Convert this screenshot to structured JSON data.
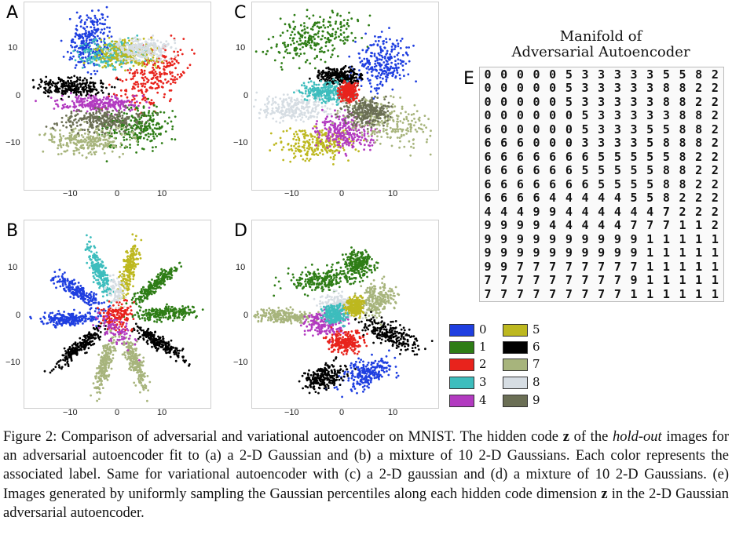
{
  "panels": [
    {
      "letter": "A",
      "yticks": [
        "10",
        "0",
        "−10"
      ],
      "xticks": [
        "−10",
        "0",
        "10"
      ]
    },
    {
      "letter": "B",
      "yticks": [
        "10",
        "0",
        "−10"
      ],
      "xticks": [
        "−10",
        "0",
        "10"
      ]
    },
    {
      "letter": "C",
      "yticks": [
        "10",
        "0",
        "−10"
      ],
      "xticks": [
        "−10",
        "0",
        "10"
      ]
    },
    {
      "letter": "D",
      "yticks": [
        "10",
        "0",
        "−10"
      ],
      "xticks": [
        "−10",
        "0",
        "10"
      ]
    }
  ],
  "manifold": {
    "title_line1": "Manifold of",
    "title_line2": "Adversarial Autoencoder",
    "letter": "E",
    "rows": [
      "000005333335582",
      "000005333338822",
      "000005333338822",
      "000000533333882",
      "600000533355882",
      "666000333358882",
      "666666655555822",
      "666666555558822",
      "666666655558822",
      "666644444558222",
      "444994444447222",
      "999944444777112",
      "999999999911111",
      "999999999911111",
      "997777777711111",
      "777777777911111",
      "777777777111111"
    ]
  },
  "legend": [
    {
      "label": "0",
      "color": "#1f3fe0"
    },
    {
      "label": "1",
      "color": "#2e7d16"
    },
    {
      "label": "2",
      "color": "#e8231c"
    },
    {
      "label": "3",
      "color": "#3dbdbd"
    },
    {
      "label": "4",
      "color": "#b23ac0"
    },
    {
      "label": "5",
      "color": "#bdb81f"
    },
    {
      "label": "6",
      "color": "#000000"
    },
    {
      "label": "7",
      "color": "#a7b47c"
    },
    {
      "label": "8",
      "color": "#d6dde3"
    },
    {
      "label": "9",
      "color": "#6b6f55"
    }
  ],
  "caption": {
    "part1": "Figure 2: Comparison of adversarial and variational autoencoder on MNIST. The hidden code ",
    "z1": "z",
    "part2": " of the ",
    "holdout": "hold-out",
    "part3": " images for an adversarial autoencoder fit to (a) a 2-D Gaussian and (b) a mixture of 10 2-D Gaussians. Each color represents the associated label. Same for variational autoencoder with (c) a 2-D gaussian and (d) a mixture of 10 2-D Gaussians. (e) Images generated by uniformly sampling the Gaussian percentiles along each hidden code dimension ",
    "z2": "z",
    "part4": " in the 2-D Gaussian adversarial autoencoder."
  }
}
